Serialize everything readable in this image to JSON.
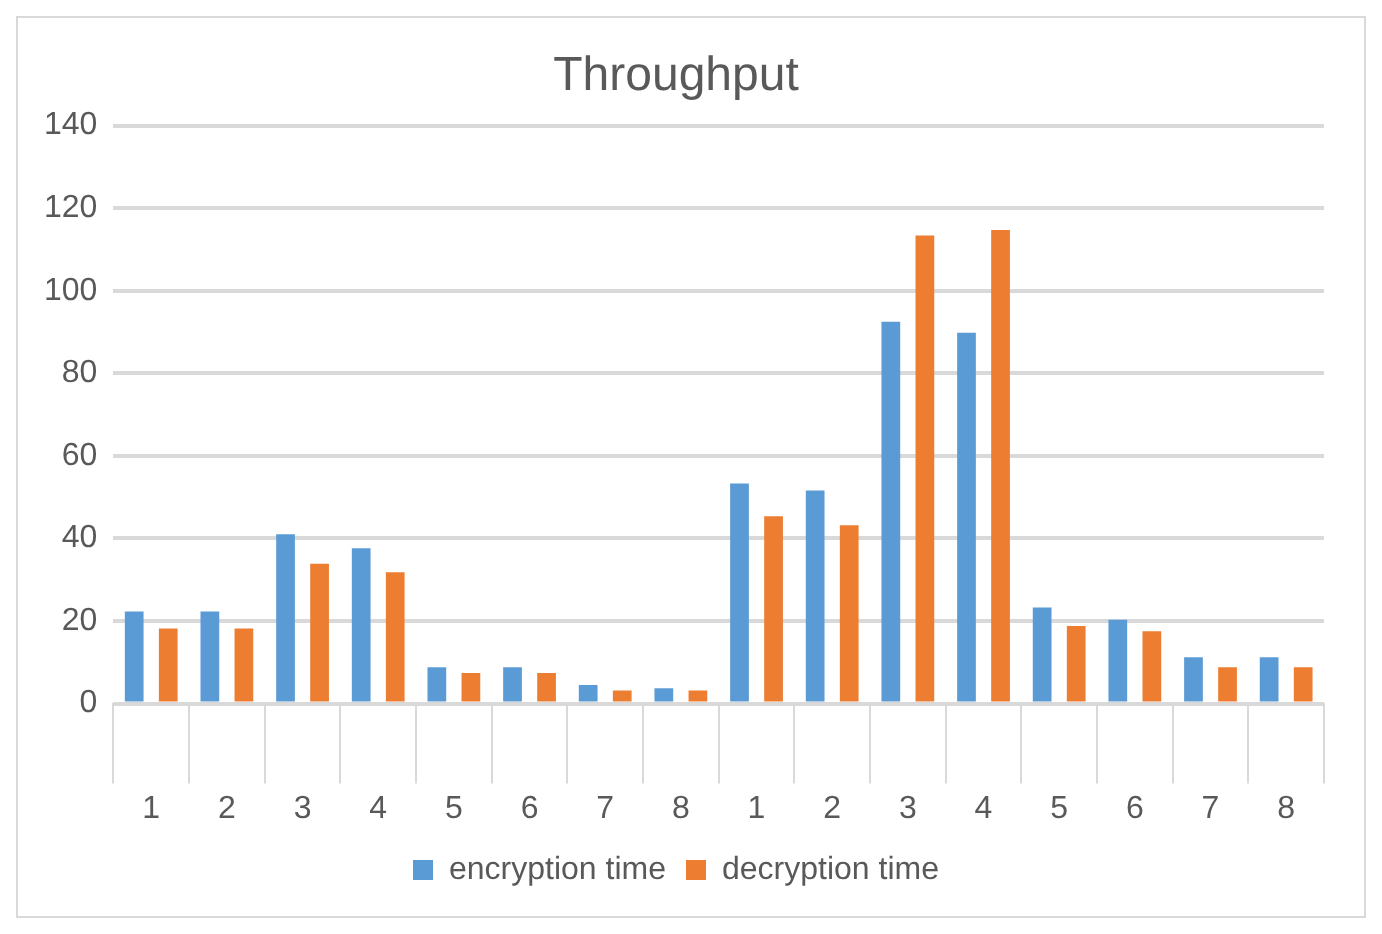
{
  "chart_data": {
    "type": "bar",
    "title": "Throughput",
    "categories": [
      "1",
      "2",
      "3",
      "4",
      "5",
      "6",
      "7",
      "8",
      "1",
      "2",
      "3",
      "4",
      "5",
      "6",
      "7",
      "8"
    ],
    "series": [
      {
        "name": "encryption time",
        "color": "#5b9bd5",
        "values": [
          22.3,
          22.3,
          41,
          37.6,
          8.8,
          8.8,
          4.5,
          3.7,
          53.3,
          51.6,
          92.5,
          89.8,
          23.3,
          20.3,
          11.2,
          11.2
        ]
      },
      {
        "name": "decryption time",
        "color": "#ed7d31",
        "values": [
          18.2,
          18.2,
          33.9,
          31.8,
          7.4,
          7.4,
          3.2,
          3.2,
          45.4,
          43.2,
          113.4,
          114.7,
          18.8,
          17.5,
          8.8,
          8.8
        ]
      }
    ],
    "ylim": [
      0,
      140
    ],
    "yticks": [
      0,
      20,
      40,
      60,
      80,
      100,
      120,
      140
    ],
    "grid": "y",
    "legend": "bottom"
  }
}
